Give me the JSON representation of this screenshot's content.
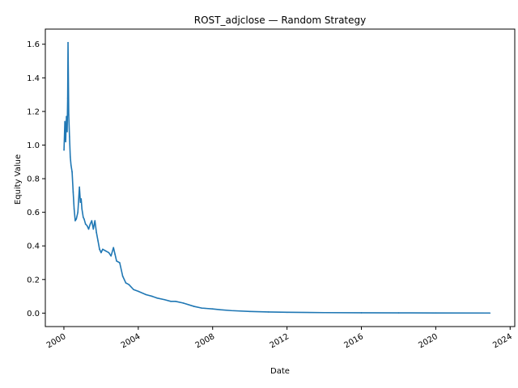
{
  "chart_data": {
    "type": "line",
    "title": "ROST_adjclose — Random Strategy",
    "xlabel": "Date",
    "ylabel": "Equity Value",
    "xlim": [
      "1999-01-01",
      "2024-04-01"
    ],
    "ylim": [
      -0.08,
      1.69
    ],
    "grid": false,
    "x_ticks": [
      "2000",
      "2004",
      "2008",
      "2012",
      "2016",
      "2020",
      "2024"
    ],
    "y_ticks": [
      "0.0",
      "0.2",
      "0.4",
      "0.6",
      "0.8",
      "1.0",
      "1.2",
      "1.4",
      "1.6"
    ],
    "colors": {
      "line": "#1f77b4"
    },
    "series": [
      {
        "x": [
          "2000-01-03",
          "2000-01-20",
          "2000-02-05",
          "2000-02-20",
          "2000-03-05",
          "2000-03-15",
          "2000-03-22",
          "2000-04-05",
          "2000-04-20",
          "2000-05-05",
          "2000-05-20",
          "2000-06-10",
          "2000-07-01",
          "2000-07-20",
          "2000-08-10",
          "2000-09-01",
          "2000-10-01",
          "2000-11-01",
          "2000-11-20",
          "2000-12-05",
          "2000-12-20",
          "2001-01-15",
          "2001-02-01",
          "2001-03-01",
          "2001-04-01",
          "2001-05-01",
          "2001-06-01",
          "2001-07-01",
          "2001-08-01",
          "2001-09-01",
          "2001-10-01",
          "2001-11-01",
          "2001-12-01",
          "2002-01-01",
          "2002-02-01",
          "2002-04-01",
          "2002-06-01",
          "2002-07-15",
          "2002-09-01",
          "2002-10-01",
          "2002-11-01",
          "2003-01-01",
          "2003-03-01",
          "2003-05-01",
          "2003-07-01",
          "2003-10-01",
          "2004-01-01",
          "2004-06-01",
          "2004-10-01",
          "2005-01-01",
          "2005-06-01",
          "2005-10-01",
          "2006-01-01",
          "2006-06-01",
          "2007-01-01",
          "2007-06-01",
          "2008-01-01",
          "2008-06-01",
          "2009-01-01",
          "2010-01-01",
          "2011-01-01",
          "2012-01-01",
          "2014-01-01",
          "2016-01-01",
          "2018-01-01",
          "2020-01-01",
          "2022-11-30"
        ],
        "values": [
          0.97,
          1.14,
          1.02,
          1.17,
          1.08,
          1.28,
          1.61,
          1.18,
          1.05,
          0.93,
          0.88,
          0.84,
          0.72,
          0.62,
          0.55,
          0.56,
          0.6,
          0.75,
          0.66,
          0.68,
          0.62,
          0.57,
          0.56,
          0.53,
          0.52,
          0.5,
          0.53,
          0.55,
          0.5,
          0.55,
          0.48,
          0.43,
          0.38,
          0.36,
          0.38,
          0.37,
          0.36,
          0.34,
          0.39,
          0.35,
          0.31,
          0.3,
          0.22,
          0.18,
          0.17,
          0.14,
          0.13,
          0.11,
          0.1,
          0.09,
          0.08,
          0.07,
          0.07,
          0.06,
          0.04,
          0.03,
          0.025,
          0.02,
          0.015,
          0.01,
          0.007,
          0.005,
          0.003,
          0.002,
          0.0015,
          0.001,
          0.0005
        ]
      }
    ]
  }
}
